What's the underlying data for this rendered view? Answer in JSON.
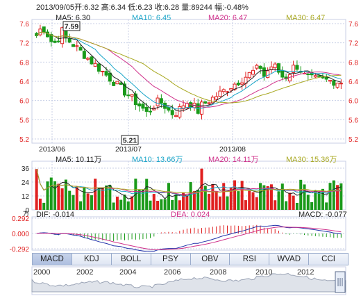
{
  "info": {
    "date": "2013/09/05",
    "open_label": "开",
    "open": "6.32",
    "high_label": "高",
    "high": "6.34",
    "low_label": "低",
    "low": "6.23",
    "close_label": "收",
    "close": "6.28",
    "volume_label": "量",
    "volume": "89244",
    "change_label": "幅",
    "change": "-0.48%"
  },
  "price_panel": {
    "ma5": "MA5: 6.30",
    "ma10": "MA10: 6.45",
    "ma20": "MA20: 6.47",
    "ma30": "MA30: 6.47",
    "y_ticks": [
      "7.6",
      "7.2",
      "6.8",
      "6.4",
      "6.0",
      "5.6",
      "5.2"
    ],
    "x_labels": [
      "2013/06",
      "2013/07",
      "2013/08"
    ],
    "max_label": "7.59",
    "min_label": "5.21"
  },
  "volume_panel": {
    "ma5": "MA5: 10.11万",
    "ma10": "MA10: 13.66万",
    "ma20": "MA20: 14.11万",
    "ma30": "MA30: 15.36万",
    "y_ticks": [
      "36",
      "24",
      "12",
      "0"
    ],
    "unit": "万"
  },
  "macd_panel": {
    "dif": "DIF: -0.014",
    "dea": "DEA: 0.024",
    "macd": "MACD: -0.077",
    "y_ticks": [
      "0.292",
      "0.000",
      "-0.292"
    ]
  },
  "indicator_tabs": [
    "MACD",
    "KDJ",
    "BOLL",
    "PSY",
    "OBV",
    "RSI",
    "WVAD",
    "CCI"
  ],
  "active_tab": "MACD",
  "timeline_years": [
    "2000",
    "2002",
    "2004",
    "2006",
    "2008",
    "2010",
    "2012"
  ],
  "colors": {
    "up": "#e02020",
    "down": "#1a9a1a",
    "ma5": "#222222",
    "ma10": "#1aa5c8",
    "ma20": "#d0308a",
    "ma30": "#a8a820",
    "grid": "#c8cfe6"
  }
}
